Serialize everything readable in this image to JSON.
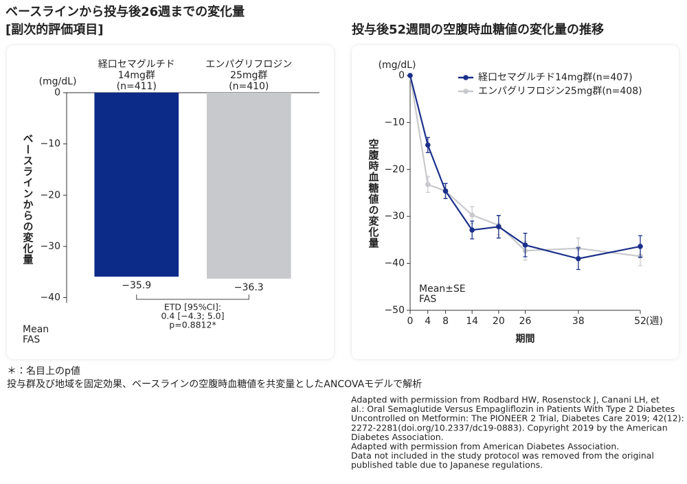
{
  "chart_data": [
    {
      "type": "bar",
      "title": [
        "ベースラインから投与後26週までの変化量",
        "[副次的評価項目]"
      ],
      "categories": [
        [
          "経口セマグルチド",
          "14mg群",
          "(n=411)"
        ],
        [
          "エンパグリフロジン",
          "25mg群",
          "(n=410)"
        ]
      ],
      "values": [
        -35.9,
        -36.3
      ],
      "value_labels": [
        "−35.9",
        "−36.3"
      ],
      "colors": [
        "#0c2a87",
        "#c8c9cc"
      ],
      "ylim": [
        -41,
        0
      ],
      "yticks": [
        0,
        {
          "value": -10,
          "label": "−10"
        },
        {
          "value": -20,
          "label": "−20"
        },
        {
          "value": -30,
          "label": "−30"
        },
        {
          "value": -40,
          "label": "−40"
        }
      ],
      "y_unit": "(mg/dL)",
      "y_label": "ベースラインからの変化量",
      "annotation": [
        "ETD [95%CI]:",
        "0.4 [−4.3; 5.0]",
        "p=0.8812*"
      ],
      "note": [
        "Mean",
        "FAS"
      ]
    },
    {
      "type": "line",
      "title": "投与後52週間の空腹時血糖値の変化量の推移",
      "x": [
        0,
        4,
        8,
        14,
        20,
        26,
        38,
        52
      ],
      "xlim": [
        0,
        52
      ],
      "xticks": [
        0,
        4,
        8,
        14,
        20,
        26,
        38,
        52
      ],
      "x_unit": "(週)",
      "x_label": "期間",
      "ylim": [
        -50,
        0
      ],
      "yticks": [
        0,
        {
          "value": -10,
          "label": "−10"
        },
        {
          "value": -20,
          "label": "−20"
        },
        {
          "value": -30,
          "label": "−30"
        },
        {
          "value": -40,
          "label": "−40"
        },
        {
          "value": -50,
          "label": "−50"
        }
      ],
      "y_unit": "(mg/dL)",
      "y_label": "空腹時血糖値の変化量",
      "series": [
        {
          "name": "経口セマグルチド14mg群(n=407)",
          "color": "#1a2f8a",
          "values": [
            0,
            -14.8,
            -24.6,
            -32.9,
            -32.2,
            -36.1,
            -39.0,
            -36.4
          ],
          "errors": [
            0,
            1.6,
            1.6,
            1.9,
            2.4,
            2.5,
            2.3,
            2.3
          ]
        },
        {
          "name": "エンパグリフロジン25mg群(n=408)",
          "color": "#c8c9cc",
          "values": [
            0,
            -23.2,
            -24.6,
            -29.7,
            -31.9,
            -37.3,
            -36.8,
            -38.5
          ],
          "errors": [
            0,
            1.7,
            1.6,
            1.8,
            2.0,
            2.0,
            2.2,
            2.0
          ]
        }
      ],
      "note": [
        "Mean±SE",
        "FAS"
      ]
    }
  ],
  "footnotes": [
    "＊：名目上のp値",
    "投与群及び地域を固定効果、ベースラインの空腹時血糖値を共変量としたANCOVAモデルで解析"
  ],
  "citation": [
    "Adapted with permission from Rodbard HW, Rosenstock J, Canani LH, et",
    "al.: Oral Semaglutide Versus Empagliflozin in Patients With Type 2 Diabetes",
    "Uncontrolled on Metformin: The PIONEER 2 Trial, Diabetes Care 2019; 42(12):",
    "2272-2281(doi.org/10.2337/dc19-0883). Copyright 2019 by the American",
    "Diabetes Association.",
    "Adapted with permission from American Diabetes Association.",
    "Data not included in the study protocol was removed from the original",
    "published table due to Japanese regulations."
  ]
}
